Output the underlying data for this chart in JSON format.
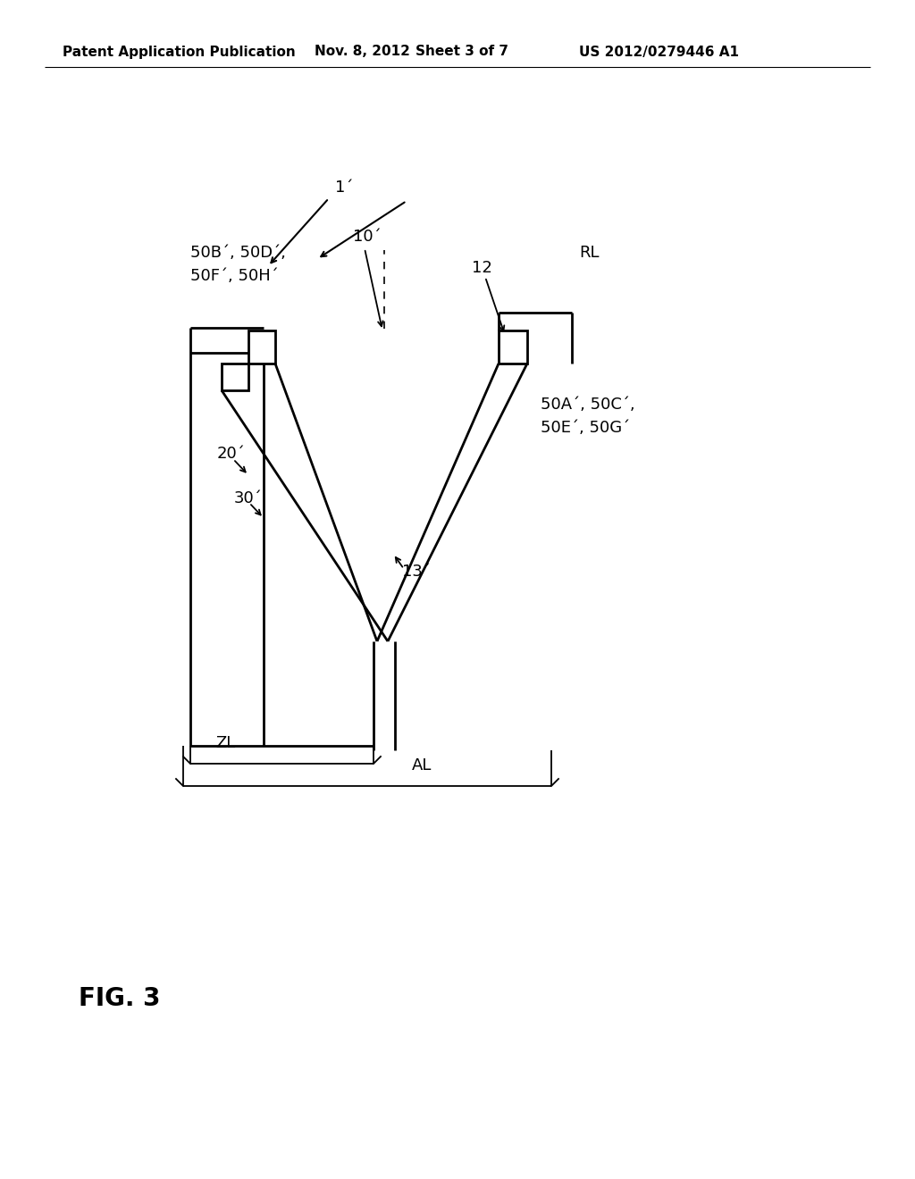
{
  "bg_color": "#ffffff",
  "lc": "#000000",
  "header_left": "Patent Application Publication",
  "header_date": "Nov. 8, 2012",
  "header_sheet": "Sheet 3 of 7",
  "header_patent": "US 2012/0279446 A1",
  "fig_label": "FIG. 3",
  "label_1prime": "1´",
  "label_10prime": "10´",
  "label_12": "12",
  "label_RL": "RL",
  "label_20prime": "20´",
  "label_30prime": "30´",
  "label_13prime": "13´",
  "label_50BDPH_line1": "50B´, 50D´,",
  "label_50BDPH_line2": "50F´, 50H´",
  "label_50ACEG_line1": "50A´, 50C´,",
  "label_50ACEG_line2": "50E´, 50G´",
  "label_ZL": "ZL",
  "label_AL": "AL",
  "lw_main": 2.0,
  "lw_dim": 1.3,
  "fs_main": 13,
  "fs_header": 11
}
